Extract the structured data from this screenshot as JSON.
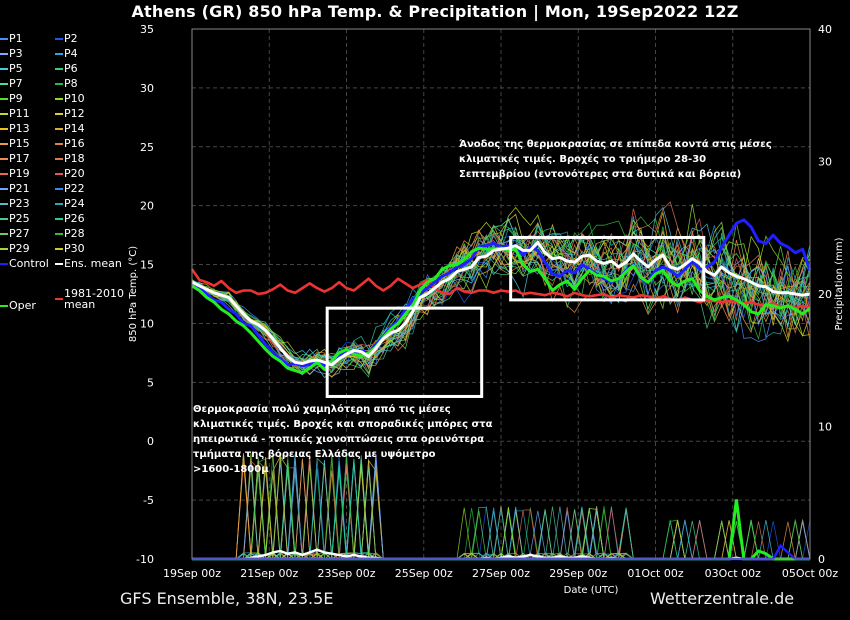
{
  "title": "Athens  (GR)  850 hPa Temp. & Precipitation | Mon, 19Sep2022 12Z",
  "footer": {
    "model": "GFS Ensemble, 38N, 23.5E",
    "source": "Wetterzentrale.de"
  },
  "legend": [
    {
      "label": "P1",
      "color": "#4d8cff"
    },
    {
      "label": "P2",
      "color": "#2255ee"
    },
    {
      "label": "P3",
      "color": "#7fa8ff"
    },
    {
      "label": "P4",
      "color": "#22aadd"
    },
    {
      "label": "P5",
      "color": "#44ccdd"
    },
    {
      "label": "P6",
      "color": "#33cc77"
    },
    {
      "label": "P7",
      "color": "#44dd99"
    },
    {
      "label": "P8",
      "color": "#22bb44"
    },
    {
      "label": "P9",
      "color": "#55dd33"
    },
    {
      "label": "P10",
      "color": "#88dd22"
    },
    {
      "label": "P11",
      "color": "#bbdd22"
    },
    {
      "label": "P12",
      "color": "#ddcc33"
    },
    {
      "label": "P13",
      "color": "#eebb22"
    },
    {
      "label": "P14",
      "color": "#ddaa33"
    },
    {
      "label": "P15",
      "color": "#ee9944"
    },
    {
      "label": "P16",
      "color": "#dd8844"
    },
    {
      "label": "P17",
      "color": "#ee8855"
    },
    {
      "label": "P18",
      "color": "#dd7755"
    },
    {
      "label": "P19",
      "color": "#ee6655"
    },
    {
      "label": "P20",
      "color": "#dd5566"
    },
    {
      "label": "P21",
      "color": "#66aaff"
    },
    {
      "label": "P22",
      "color": "#3388ee"
    },
    {
      "label": "P23",
      "color": "#55bbcc"
    },
    {
      "label": "P24",
      "color": "#22aabb"
    },
    {
      "label": "P25",
      "color": "#44cc88"
    },
    {
      "label": "P26",
      "color": "#22cc99"
    },
    {
      "label": "P27",
      "color": "#66cc66"
    },
    {
      "label": "P28",
      "color": "#33bb33"
    },
    {
      "label": "P29",
      "color": "#99dd33"
    },
    {
      "label": "P30",
      "color": "#cccc22"
    },
    {
      "label": "Control",
      "color": "#1f1fff"
    },
    {
      "label": "Ens. mean",
      "color": "#ffffff"
    },
    {
      "label": "Oper",
      "color": "#22ee22"
    },
    {
      "label": "1981-2010 mean",
      "color": "#ee3333"
    }
  ],
  "annotations": {
    "cold": "Θερμοκρασία πολύ χαμηλότερη από τις μέσες κλιματικές τιμές. Βροχές και σποραδικές μπόρες στα ηπειρωτικά - τοπικές χιονοπτώσεις στα ορεινότερα τμήματα της βόρειας Ελλάδας με υψόμετρο >1600-1800μ",
    "cold_lines": [
      "Θερμοκρασία πολύ χαμηλότερη από τις μέσες",
      "κλιματικές τιμές. Βροχές και σποραδικές μπόρες στα",
      "ηπειρωτικά - τοπικές χιονοπτώσεις στα ορεινότερα",
      "τμήματα της βόρειας Ελλάδας με υψόμετρο",
      ">1600-1800μ"
    ],
    "warm_lines": [
      "Άνοδος της θερμοκρασίας σε επίπεδα κοντά στις μέσες",
      "κλιματικές τιμές. Βροχές το τριήμερο 28-30",
      "Σεπτεμβρίου (εντονότερες στα δυτικά και βόρεια)"
    ]
  },
  "chart_data": {
    "type": "line",
    "x_unit": "hours from 19Sep 00z (UTC), 6-hourly",
    "x_range": [
      0,
      384
    ],
    "xlabel": "Date (UTC)",
    "ylabel": "850 hPa Temp. (°C)",
    "y2label": "Precipitation (mm)",
    "ylim": [
      -10,
      35
    ],
    "y2lim": [
      0,
      40
    ],
    "yticks": [
      -10,
      -5,
      0,
      5,
      10,
      15,
      20,
      25,
      30,
      35
    ],
    "y2ticks": [
      0,
      10,
      20,
      30,
      40
    ],
    "xtick_labels": [
      "19Sep 00z",
      "21Sep 00z",
      "23Sep 00z",
      "25Sep 00z",
      "27Sep 00z",
      "29Sep 00z",
      "01Oct 00z",
      "03Oct 00z",
      "05Oct 00z"
    ],
    "grid": true,
    "series": [
      {
        "name": "Ens. mean",
        "color": "#ffffff",
        "values": [
          13.5,
          13.2,
          12.9,
          12.6,
          12.4,
          12.2,
          11.5,
          10.8,
          10.2,
          9.9,
          9.4,
          8.7,
          7.9,
          7.2,
          6.7,
          6.6,
          6.8,
          6.9,
          6.7,
          6.5,
          7.0,
          7.4,
          7.7,
          7.6,
          7.2,
          7.9,
          8.7,
          9.2,
          9.4,
          10.0,
          11.0,
          12.2,
          12.5,
          13.0,
          13.5,
          13.8,
          14.4,
          14.6,
          14.8,
          15.6,
          15.7,
          16.2,
          16.3,
          16.4,
          16.6,
          16.2,
          16.2,
          16.9,
          16.0,
          15.5,
          15.6,
          15.3,
          15.2,
          15.7,
          15.8,
          15.3,
          15.1,
          15.3,
          14.8,
          15.2,
          15.9,
          15.3,
          14.8,
          15.4,
          15.8,
          14.8,
          14.6,
          15.0,
          15.5,
          15.1,
          14.4,
          14.1,
          14.8,
          14.3,
          14.0,
          13.8,
          13.5,
          13.2,
          13.1,
          12.7,
          12.6,
          12.6,
          12.5,
          12.4,
          12.5
        ]
      },
      {
        "name": "Control",
        "color": "#1f1fff",
        "values": [
          13.3,
          13.0,
          12.5,
          12.0,
          11.8,
          11.2,
          10.8,
          10.0,
          9.8,
          9.0,
          8.2,
          7.5,
          7.0,
          6.5,
          6.6,
          6.4,
          6.5,
          6.8,
          6.4,
          6.7,
          7.2,
          7.8,
          7.5,
          7.7,
          7.5,
          8.2,
          8.9,
          9.7,
          10.2,
          11.2,
          12.0,
          12.5,
          13.0,
          13.5,
          14.0,
          14.3,
          14.8,
          15.0,
          15.5,
          16.5,
          16.6,
          16.8,
          16.5,
          16.6,
          16.6,
          15.8,
          16.5,
          16.2,
          15.2,
          14.2,
          14.0,
          14.5,
          14.3,
          15.0,
          14.6,
          14.2,
          13.8,
          13.5,
          13.8,
          14.5,
          15.0,
          13.8,
          13.5,
          14.5,
          14.8,
          14.5,
          14.0,
          14.6,
          15.3,
          14.6,
          14.8,
          15.2,
          16.5,
          17.5,
          18.5,
          18.8,
          18.2,
          17.0,
          16.8,
          17.5,
          16.8,
          16.5,
          16.0,
          16.3,
          14.5
        ]
      },
      {
        "name": "Oper",
        "color": "#22ee22",
        "values": [
          13.2,
          12.8,
          12.2,
          11.8,
          11.2,
          10.8,
          10.2,
          9.8,
          9.2,
          8.5,
          7.8,
          7.2,
          6.8,
          6.2,
          6.0,
          5.8,
          6.2,
          6.7,
          6.1,
          6.8,
          7.5,
          7.8,
          7.4,
          7.2,
          7.5,
          8.0,
          8.8,
          9.5,
          10.0,
          10.8,
          11.5,
          12.8,
          13.5,
          13.8,
          14.6,
          14.9,
          15.0,
          15.4,
          16.1,
          16.4,
          16.3,
          16.3,
          16.4,
          16.2,
          16.3,
          15.0,
          14.4,
          14.6,
          13.8,
          12.8,
          13.3,
          13.6,
          12.9,
          13.8,
          14.5,
          14.1,
          14.0,
          13.6,
          13.8,
          14.4,
          14.9,
          13.9,
          13.5,
          14.2,
          14.5,
          13.6,
          13.2,
          13.6,
          13.8,
          12.8,
          12.3,
          12.0,
          12.2,
          12.3,
          12.0,
          11.6,
          11.0,
          10.8,
          11.6,
          11.5,
          11.3,
          11.5,
          11.2,
          10.8,
          11.3
        ]
      },
      {
        "name": "1981-2010 mean",
        "color": "#ee3333",
        "values": [
          14.6,
          13.7,
          13.5,
          13.2,
          13.6,
          13.0,
          12.6,
          12.8,
          12.8,
          12.5,
          12.6,
          12.9,
          13.3,
          12.8,
          12.6,
          13.0,
          13.4,
          13.0,
          12.7,
          13.0,
          13.5,
          13.0,
          12.8,
          13.3,
          13.8,
          13.2,
          12.8,
          13.2,
          13.8,
          13.4,
          13.0,
          13.3,
          13.7,
          13.0,
          12.6,
          12.5,
          13.0,
          12.7,
          12.6,
          12.8,
          12.8,
          12.6,
          12.8,
          12.7,
          12.8,
          12.5,
          12.6,
          12.5,
          12.4,
          12.6,
          12.5,
          12.3,
          12.6,
          12.4,
          12.3,
          12.4,
          12.5,
          12.2,
          12.4,
          12.3,
          12.2,
          12.4,
          12.3,
          12.1,
          12.3,
          12.1,
          11.9,
          12.2,
          12.0,
          11.8,
          12.0,
          11.9,
          11.8,
          11.9,
          11.8,
          11.7,
          11.8,
          11.6,
          11.5,
          11.7,
          11.4,
          11.5,
          11.3,
          11.5,
          11.3
        ]
      }
    ],
    "precip_series": [
      {
        "name": "Ens. mean",
        "color": "#ffffff",
        "values": [
          0,
          0,
          0,
          0,
          0,
          0,
          0,
          0,
          0.1,
          0.2,
          0.3,
          0.5,
          0.6,
          0.4,
          0.5,
          0.3,
          0.5,
          0.7,
          0.5,
          0.4,
          0.3,
          0.2,
          0.3,
          0.2,
          0.1,
          0.1,
          0,
          0,
          0,
          0,
          0,
          0,
          0,
          0,
          0,
          0,
          0,
          0,
          0,
          0,
          0.1,
          0,
          0.1,
          0.2,
          0.1,
          0.2,
          0.3,
          0.2,
          0.1,
          0.1,
          0.2,
          0.1,
          0.1,
          0.2,
          0.1,
          0,
          0,
          0.1,
          0,
          0,
          0,
          0,
          0,
          0,
          0,
          0,
          0,
          0,
          0,
          0,
          0,
          0,
          0,
          0,
          0.1,
          0,
          0,
          0,
          0,
          0,
          0,
          0,
          0,
          0,
          0
        ]
      },
      {
        "name": "Oper",
        "color": "#22ee22",
        "values": [
          0,
          0,
          0,
          0,
          0,
          0,
          0,
          0,
          0,
          0,
          0,
          0,
          0,
          0,
          0,
          0,
          0,
          0,
          0,
          0,
          0,
          0,
          0,
          0,
          0,
          0,
          0,
          0,
          0,
          0,
          0,
          0,
          0,
          0,
          0,
          0,
          0,
          0,
          0,
          0,
          0,
          0,
          0,
          0,
          0,
          0,
          0,
          0,
          0,
          0,
          0,
          0,
          0,
          0,
          0,
          0,
          0,
          0,
          0,
          0,
          0,
          0,
          0,
          0,
          0,
          0,
          0,
          0,
          0,
          0,
          0,
          0,
          0,
          0,
          4.5,
          0,
          0,
          0.6,
          0.4,
          0,
          0,
          0,
          0,
          0,
          0
        ]
      },
      {
        "name": "Control",
        "color": "#1f1fff",
        "values": [
          0,
          0,
          0,
          0,
          0,
          0,
          0,
          0,
          0,
          0,
          0,
          0,
          0,
          0,
          0,
          0,
          0,
          0,
          0,
          0,
          0,
          0,
          0,
          0,
          0,
          0,
          0,
          0,
          0,
          0,
          0,
          0,
          0,
          0,
          0,
          0,
          0,
          0,
          0,
          0,
          0,
          0,
          0,
          0,
          0,
          0,
          0,
          0,
          0,
          0,
          0,
          0,
          0,
          0,
          0,
          0,
          0,
          0,
          0,
          0,
          0,
          0,
          0,
          0,
          0,
          0,
          0,
          0,
          0,
          0,
          0,
          0,
          0,
          0,
          0,
          0,
          0,
          0,
          0,
          0,
          1.0,
          0.5,
          0,
          0,
          0
        ]
      }
    ],
    "highlight_boxes": [
      {
        "name": "cold-period",
        "x": [
          84,
          180
        ],
        "y": [
          3.8,
          11.3
        ]
      },
      {
        "name": "warm-period",
        "x": [
          198,
          318
        ],
        "y": [
          12.0,
          17.3
        ]
      }
    ]
  }
}
